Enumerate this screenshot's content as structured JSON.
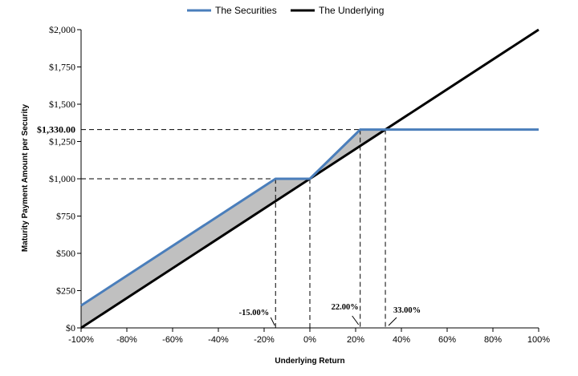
{
  "chart_data": {
    "type": "line",
    "title": "",
    "xlabel": "Underlying Return",
    "ylabel": "Maturity Payment Amount per Security",
    "xlim": [
      -100,
      100
    ],
    "ylim": [
      0,
      2000
    ],
    "x_ticks": [
      -100,
      -80,
      -60,
      -40,
      -20,
      0,
      20,
      40,
      60,
      80,
      100
    ],
    "x_tick_labels": [
      "-100%",
      "-80%",
      "-60%",
      "-40%",
      "-20%",
      "0%",
      "20%",
      "40%",
      "60%",
      "80%",
      "100%"
    ],
    "y_ticks": [
      0,
      250,
      500,
      750,
      1000,
      1250,
      1500,
      1750,
      2000
    ],
    "y_tick_labels": [
      "$0",
      "$250",
      "$500",
      "$750",
      "$1,000",
      "$1,250",
      "$1,500",
      "$1,750",
      "$2,000"
    ],
    "legend_position": "top-center",
    "grid": false,
    "series": [
      {
        "name": "The Securities",
        "color": "#4a7ebb",
        "x": [
          -100,
          -15,
          0,
          22,
          33,
          100
        ],
        "y": [
          150,
          1000,
          1000,
          1330,
          1330,
          1330
        ]
      },
      {
        "name": "The Underlying",
        "color": "#000000",
        "x": [
          -100,
          100
        ],
        "y": [
          0,
          2000
        ]
      }
    ],
    "shading": {
      "color": "#c0c0c0",
      "between": [
        "The Securities",
        "The Underlying"
      ],
      "x_range": [
        -100,
        33
      ]
    },
    "reference_lines": {
      "horizontal": [
        1000,
        1330
      ],
      "vertical": [
        -15,
        0,
        22,
        33
      ]
    },
    "annotations": [
      {
        "text": "-15.00%",
        "x": -15
      },
      {
        "text": "22.00%",
        "x": 22
      },
      {
        "text": "33.00%",
        "x": 33
      }
    ],
    "y_annotation": {
      "text": "$1,330.00",
      "y": 1330
    }
  }
}
